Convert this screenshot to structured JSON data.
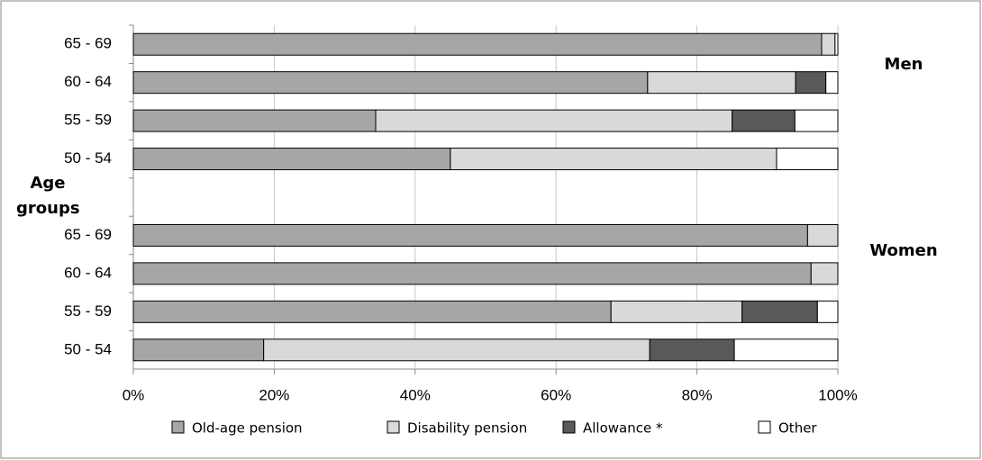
{
  "chart_data": {
    "type": "stacked_barh",
    "y_label": "Age groups",
    "annotations": [
      "Men",
      "Women"
    ],
    "categories": [
      "65 - 69",
      "60 - 64",
      "55 - 59",
      "50 - 54",
      null,
      "65 - 69",
      "60 - 64",
      "55 - 59",
      "50 - 54"
    ],
    "series": [
      {
        "name": "Old-age pension",
        "color": "#a6a6a6",
        "values": [
          97.7,
          73.0,
          34.4,
          45.0,
          null,
          95.7,
          96.2,
          67.8,
          18.5
        ]
      },
      {
        "name": "Disability pension",
        "color": "#d9d9d9",
        "values": [
          1.9,
          21.0,
          50.6,
          46.3,
          null,
          4.3,
          3.8,
          18.6,
          54.8
        ]
      },
      {
        "name": "Allowance *",
        "color": "#595959",
        "values": [
          0,
          4.3,
          8.9,
          0,
          null,
          0,
          0,
          10.7,
          12.0
        ]
      },
      {
        "name": "Other",
        "color": "#ffffff",
        "values": [
          0.4,
          1.7,
          6.1,
          8.7,
          null,
          0,
          0,
          2.9,
          14.7
        ]
      }
    ],
    "xlim": [
      0,
      100
    ],
    "xticks": [
      {
        "value": 0,
        "label": "0%"
      },
      {
        "value": 20,
        "label": "20%"
      },
      {
        "value": 40,
        "label": "40%"
      },
      {
        "value": 60,
        "label": "60%"
      },
      {
        "value": 80,
        "label": "80%"
      },
      {
        "value": 100,
        "label": "100%"
      }
    ],
    "grid": true
  }
}
